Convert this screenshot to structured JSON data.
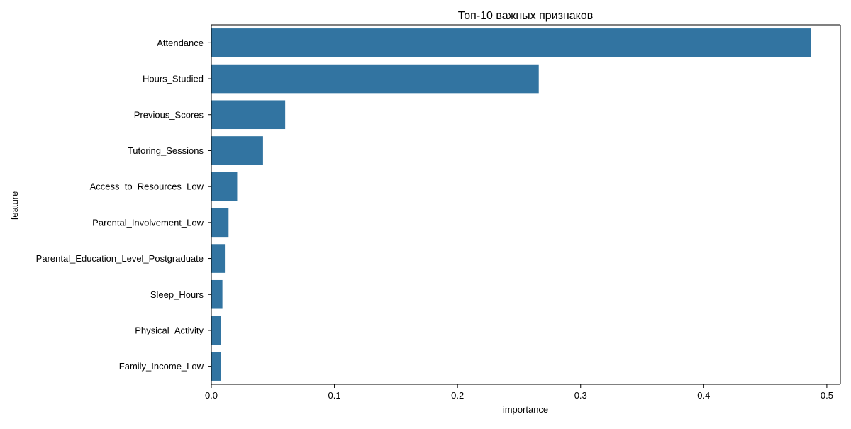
{
  "chart_data": {
    "type": "bar",
    "orientation": "horizontal",
    "title": "Топ-10 важных признаков",
    "xlabel": "importance",
    "ylabel": "feature",
    "categories": [
      "Attendance",
      "Hours_Studied",
      "Previous_Scores",
      "Tutoring_Sessions",
      "Access_to_Resources_Low",
      "Parental_Involvement_Low",
      "Parental_Education_Level_Postgraduate",
      "Sleep_Hours",
      "Physical_Activity",
      "Family_Income_Low"
    ],
    "values": [
      0.487,
      0.266,
      0.06,
      0.042,
      0.021,
      0.014,
      0.011,
      0.009,
      0.008,
      0.008
    ],
    "xlim": [
      0,
      0.511
    ],
    "xticks": [
      0.0,
      0.1,
      0.2,
      0.3,
      0.4,
      0.5
    ],
    "xtick_labels": [
      "0.0",
      "0.1",
      "0.2",
      "0.3",
      "0.4",
      "0.5"
    ],
    "grid": false,
    "bar_color": "#3274a1"
  }
}
